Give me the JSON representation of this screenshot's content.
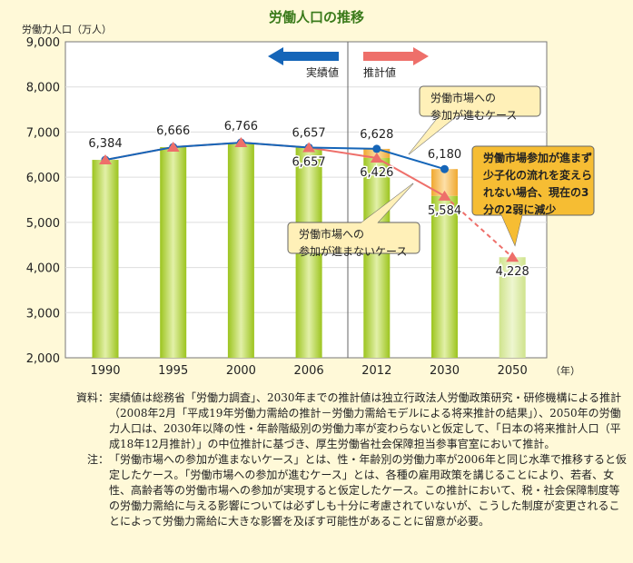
{
  "chart_data": {
    "type": "bar",
    "title": "労働人口の推移",
    "ylabel": "労働力人口（万人）",
    "xlabel": "（年）",
    "ylim": [
      2000,
      9000
    ],
    "yticks": [
      "2,000",
      "3,000",
      "4,000",
      "5,000",
      "6,000",
      "7,000",
      "8,000",
      "9,000"
    ],
    "categories": [
      "1990",
      "1995",
      "2000",
      "2006",
      "2012",
      "2030",
      "2050"
    ],
    "bars_not_participating": [
      6384,
      6666,
      6766,
      6657,
      6426,
      5584,
      4228
    ],
    "bars_participating": [
      6384,
      6666,
      6766,
      6657,
      6628,
      6180,
      null
    ],
    "series": [
      {
        "name": "労働市場への参加が進むケース",
        "values": [
          6384,
          6666,
          6766,
          6657,
          6628,
          6180,
          null
        ],
        "color": "#1565b8",
        "marker": "circle"
      },
      {
        "name": "労働市場への参加が進まないケース",
        "values": [
          6384,
          6666,
          6766,
          6657,
          6426,
          5584,
          4228
        ],
        "color": "#ee6f6a",
        "marker": "triangle"
      }
    ],
    "data_labels": [
      {
        "cat": "1990",
        "text": "6,384"
      },
      {
        "cat": "1995",
        "text": "6,666"
      },
      {
        "cat": "2000",
        "text": "6,766"
      },
      {
        "cat": "2006",
        "text": "6,657",
        "pos": "above"
      },
      {
        "cat": "2006",
        "text": "6,657",
        "pos": "below"
      },
      {
        "cat": "2012",
        "text": "6,628",
        "pos": "above"
      },
      {
        "cat": "2012",
        "text": "6,426",
        "pos": "below"
      },
      {
        "cat": "2030",
        "text": "6,180",
        "pos": "above"
      },
      {
        "cat": "2030",
        "text": "5,584",
        "pos": "below"
      },
      {
        "cat": "2050",
        "text": "4,228",
        "pos": "below"
      }
    ],
    "legend_actual": "実績値",
    "legend_projected": "推計値",
    "callouts": {
      "participating": [
        "労働市場への",
        "参加が進むケース"
      ],
      "not_participating": [
        "労働市場への",
        "参加が進まないケース"
      ],
      "summary": [
        "労働市場参加が進まず",
        "少子化の流れを変えら",
        "れない場合、現在の3",
        "分の2弱に減少"
      ]
    },
    "grid": true,
    "colors": {
      "bar": "#a6cc2e",
      "bar_light": "#d7e9a0",
      "bar_extra": "#f3b040",
      "actual_arrow": "#1565b8",
      "projected_arrow": "#ee6f6a",
      "title": "#3a7a1a"
    }
  },
  "notes": [
    {
      "label": "資料：",
      "text": "実績値は総務省「労働力調査」、2030年までの推計値は独立行政法人労働政策研究・研修機構による推計（2008年2月「平成19年労働力需給の推計－労働力需給モデルによる将来推計の結果」）、2050年の労働力人口は、2030年以降の性・年齢階級別の労働力率が変わらないと仮定して、「日本の将来推計人口（平成18年12月推計）」の中位推計に基づき、厚生労働省社会保障担当参事官室において推計。"
    },
    {
      "label": "注：",
      "text": "「労働市場への参加が進まないケース」とは、性・年齢別の労働力率が2006年と同じ水準で推移すると仮定したケース。「労働市場への参加が進むケース」とは、各種の雇用政策を講じることにより、若者、女性、高齢者等の労働市場への参加が実現すると仮定したケース。この推計において、税・社会保障制度等の労働力需給に与える影響については必ずしも十分に考慮されていないが、こうした制度が変更されることによって労働力需給に大きな影響を及ぼす可能性があることに留意が必要。"
    }
  ]
}
